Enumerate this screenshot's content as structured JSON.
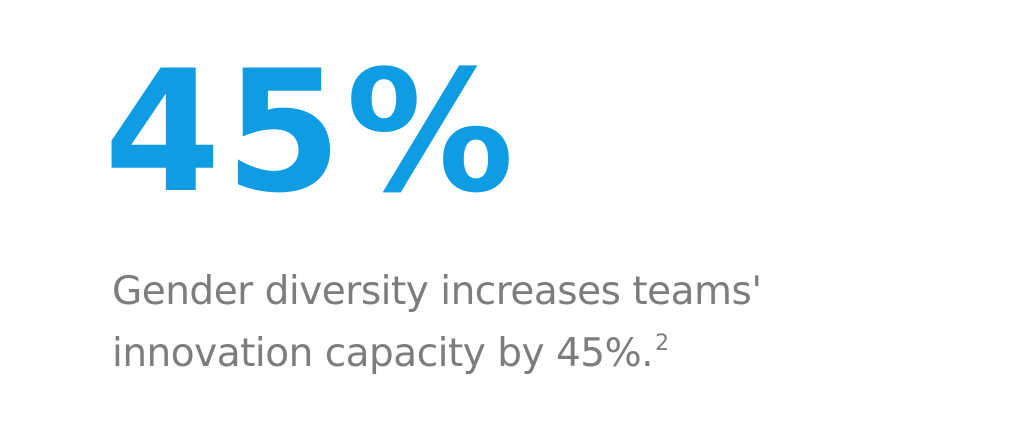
{
  "stat": {
    "value": "45%",
    "description": {
      "lines": [
        "Gender diversity increases teams'",
        "innovation capacity by 45%."
      ],
      "footnote": "2"
    }
  }
}
